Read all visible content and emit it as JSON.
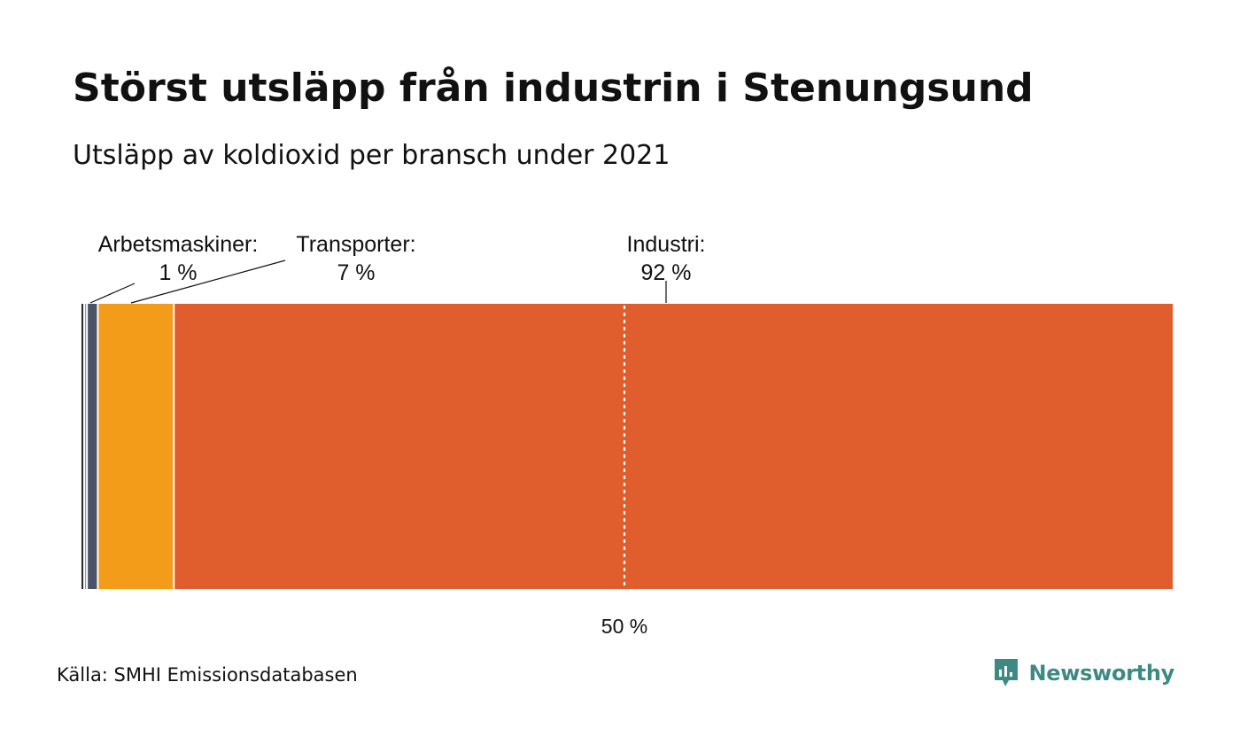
{
  "header": {
    "title": "Störst utsläpp från industrin i Stenungsund",
    "subtitle": "Utsläpp av koldioxid per bransch under 2021"
  },
  "chart_data": {
    "type": "bar",
    "orientation": "horizontal-stacked",
    "title": "Störst utsläpp från industrin i Stenungsund",
    "subtitle": "Utsläpp av koldioxid per bransch under 2021",
    "unit": "%",
    "xlim": [
      0,
      100
    ],
    "segments": [
      {
        "name": "",
        "value": 0.25,
        "color": "#2c2c34",
        "labeled": false
      },
      {
        "name": "",
        "value": 0.25,
        "color": "#8a8a8a",
        "labeled": false
      },
      {
        "name": "Arbetsmaskiner:",
        "value": 1,
        "value_label": "1 %",
        "color": "#4a5368",
        "labeled": true
      },
      {
        "name": "Transporter:",
        "value": 7,
        "value_label": "7 %",
        "color": "#f39c1a",
        "labeled": true
      },
      {
        "name": "Industri:",
        "value": 92,
        "value_label": "92 %",
        "color": "#e05e2e",
        "labeled": true
      }
    ],
    "reference_line": {
      "value": 50,
      "label": "50 %",
      "style": "dotted",
      "color": "#ffffff"
    }
  },
  "footer": {
    "source": "Källa: SMHI Emissionsdatabasen",
    "brand": "Newsworthy",
    "brand_color": "#3d8a85",
    "brand_icon": "newsworthy-logo-icon"
  }
}
